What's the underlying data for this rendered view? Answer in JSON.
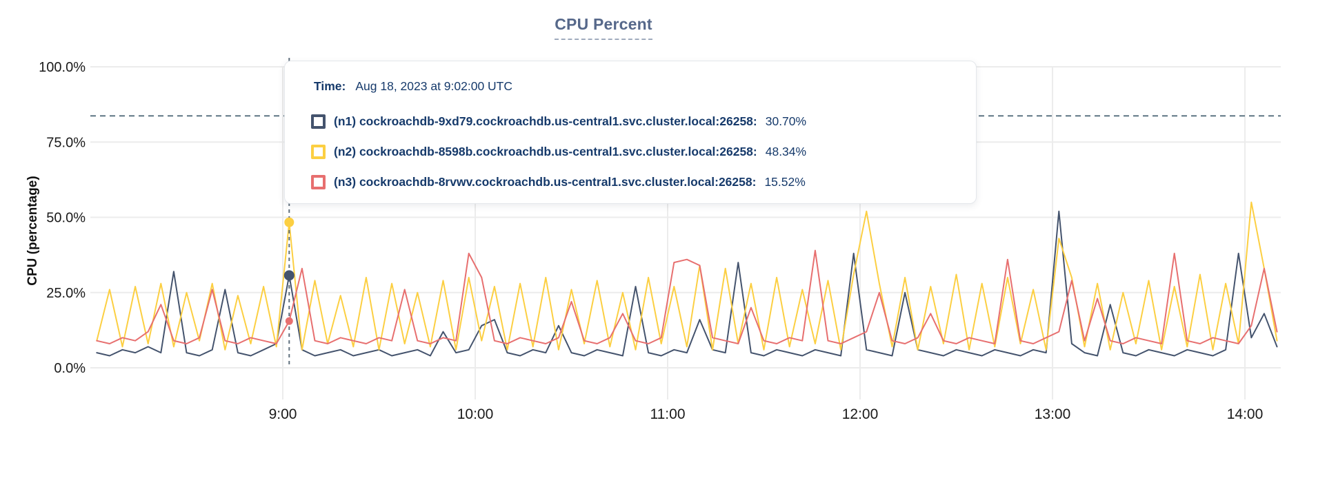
{
  "colors": {
    "n1_navy": "#44536d",
    "n2_yellow": "#fccf42",
    "n3_red": "#e76f6f",
    "threshold_line": "#5c7382",
    "hover_line": "#5f6f7d",
    "grid": "#ececec",
    "axis_text": "#1a1a1a",
    "title_text": "#56688a",
    "tooltip_text": "#163a6b"
  },
  "tooltip": {
    "time_label": "Time:",
    "time_value": "Aug 18, 2023 at 9:02:00 UTC",
    "rows": [
      {
        "label": "(n1) cockroachdb-9xd79.cockroachdb.us-central1.svc.cluster.local:26258:",
        "value": "30.70%"
      },
      {
        "label": "(n2) cockroachdb-8598b.cockroachdb.us-central1.svc.cluster.local:26258:",
        "value": "48.34%"
      },
      {
        "label": "(n3) cockroachdb-8rvwv.cockroachdb.us-central1.svc.cluster.local:26258:",
        "value": "15.52%"
      }
    ]
  },
  "chart_data": {
    "type": "line",
    "title": "CPU Percent",
    "ylabel": "CPU (percentage)",
    "ylim": [
      0,
      100
    ],
    "grid": true,
    "x_unit": "minutes after 8:00 UTC on Aug 18, 2023",
    "x_ticks": [
      {
        "t": 60,
        "label": "9:00"
      },
      {
        "t": 120,
        "label": "10:00"
      },
      {
        "t": 180,
        "label": "11:00"
      },
      {
        "t": 240,
        "label": "12:00"
      },
      {
        "t": 300,
        "label": "13:00"
      },
      {
        "t": 360,
        "label": "14:00"
      }
    ],
    "y_ticks": [
      {
        "v": 100,
        "label": "100.0%"
      },
      {
        "v": 75,
        "label": "75.0%"
      },
      {
        "v": 50,
        "label": "50.0%"
      },
      {
        "v": 25,
        "label": "25.0%"
      },
      {
        "v": 0,
        "label": "0.0%"
      }
    ],
    "threshold_value": 83.7,
    "hover": {
      "t": 62,
      "time": "Aug 18, 2023 at 9:02:00 UTC",
      "values": [
        30.7,
        48.34,
        15.52
      ]
    },
    "x": [
      2,
      6,
      10,
      14,
      18,
      22,
      26,
      30,
      34,
      38,
      42,
      46,
      50,
      54,
      58,
      62,
      66,
      70,
      74,
      78,
      82,
      86,
      90,
      94,
      98,
      102,
      106,
      110,
      114,
      118,
      122,
      126,
      130,
      134,
      138,
      142,
      146,
      150,
      154,
      158,
      162,
      166,
      170,
      174,
      178,
      182,
      186,
      190,
      194,
      198,
      202,
      206,
      210,
      214,
      218,
      222,
      226,
      230,
      234,
      238,
      242,
      246,
      250,
      254,
      258,
      262,
      266,
      270,
      274,
      278,
      282,
      286,
      290,
      294,
      298,
      302,
      306,
      310,
      314,
      318,
      322,
      326,
      330,
      334,
      338,
      342,
      346,
      350,
      354,
      358,
      362,
      366,
      370
    ],
    "series": [
      {
        "name": "(n1) cockroachdb-9xd79.cockroachdb.us-central1.svc.cluster.local:26258",
        "color": "#44536d",
        "values": [
          5,
          4,
          6,
          5,
          7,
          5,
          32,
          5,
          4,
          6,
          26,
          5,
          4,
          6,
          8,
          30.7,
          6,
          4,
          5,
          6,
          4,
          5,
          6,
          4,
          5,
          6,
          4,
          12,
          5,
          6,
          14,
          16,
          5,
          4,
          6,
          5,
          14,
          5,
          4,
          6,
          5,
          4,
          27,
          5,
          4,
          6,
          5,
          16,
          6,
          5,
          35,
          5,
          4,
          6,
          5,
          4,
          6,
          5,
          4,
          38,
          6,
          5,
          4,
          25,
          6,
          5,
          4,
          6,
          5,
          4,
          6,
          5,
          4,
          6,
          5,
          52,
          8,
          5,
          4,
          21,
          5,
          4,
          6,
          5,
          4,
          6,
          5,
          4,
          6,
          38,
          10,
          18,
          7
        ]
      },
      {
        "name": "(n2) cockroachdb-8598b.cockroachdb.us-central1.svc.cluster.local:26258",
        "color": "#fccf42",
        "values": [
          9,
          26,
          7,
          27,
          8,
          28,
          7,
          25,
          9,
          28,
          6,
          24,
          8,
          27,
          7,
          48.34,
          6,
          29,
          8,
          24,
          7,
          30,
          6,
          28,
          8,
          25,
          7,
          29,
          6,
          30,
          9,
          27,
          6,
          28,
          7,
          30,
          6,
          26,
          8,
          29,
          7,
          25,
          6,
          30,
          8,
          27,
          7,
          34,
          6,
          33,
          8,
          28,
          6,
          30,
          7,
          26,
          8,
          29,
          6,
          31,
          52,
          28,
          7,
          30,
          6,
          27,
          8,
          31,
          6,
          28,
          7,
          30,
          8,
          26,
          6,
          43,
          30,
          7,
          28,
          6,
          25,
          8,
          29,
          6,
          27,
          7,
          31,
          6,
          28,
          8,
          55,
          33,
          9
        ]
      },
      {
        "name": "(n3) cockroachdb-8rvwv.cockroachdb.us-central1.svc.cluster.local:26258",
        "color": "#e76f6f",
        "values": [
          9,
          8,
          10,
          9,
          12,
          21,
          9,
          8,
          10,
          26,
          9,
          8,
          10,
          9,
          8,
          15.52,
          33,
          9,
          8,
          10,
          9,
          8,
          10,
          9,
          26,
          9,
          8,
          10,
          9,
          38,
          30,
          9,
          8,
          10,
          9,
          8,
          10,
          22,
          9,
          8,
          10,
          18,
          9,
          8,
          10,
          35,
          36,
          34,
          10,
          9,
          8,
          20,
          9,
          8,
          10,
          9,
          39,
          9,
          8,
          10,
          12,
          25,
          9,
          8,
          10,
          18,
          9,
          8,
          10,
          9,
          8,
          36,
          9,
          8,
          10,
          12,
          29,
          9,
          23,
          9,
          8,
          10,
          9,
          8,
          38,
          9,
          8,
          10,
          9,
          8,
          14,
          33,
          12
        ]
      }
    ]
  }
}
